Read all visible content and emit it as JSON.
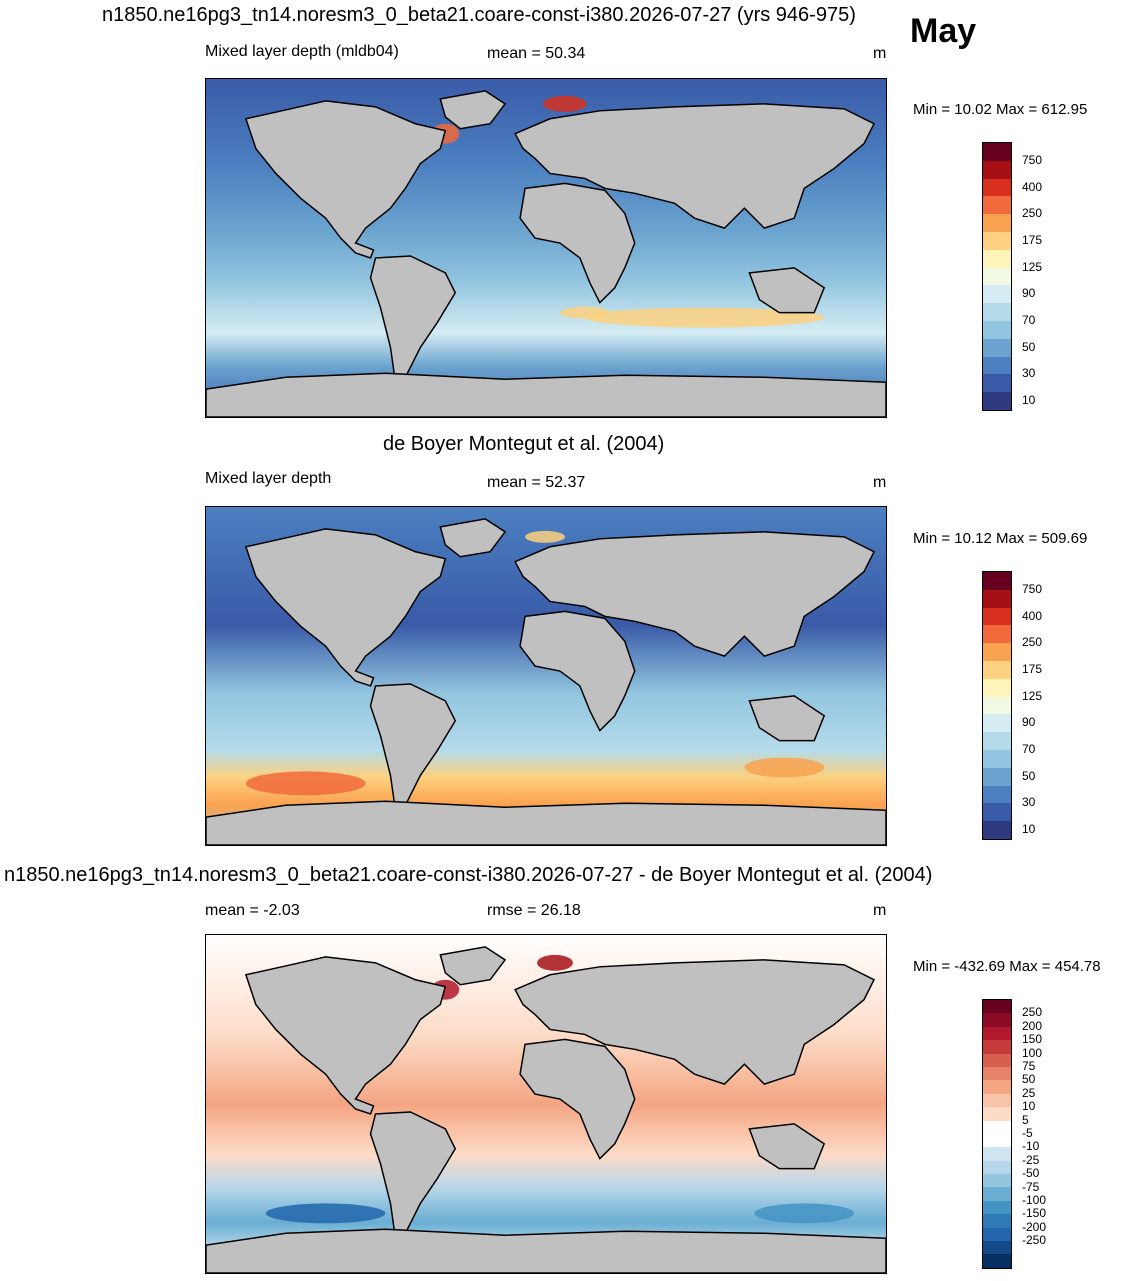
{
  "header": {
    "title": "n1850.ne16pg3_tn14.noresm3_0_beta21.coare-const-i380.2026-07-27 (yrs 946-975)",
    "month": "May"
  },
  "panels": [
    {
      "title": "",
      "left_label": "Mixed layer depth (mldb04)",
      "center_label": "mean =  50.34",
      "units": "m",
      "minmax": "Min =  10.02 Max = 612.95",
      "colorbar": {
        "labels": [
          "750",
          "400",
          "250",
          "175",
          "125",
          "90",
          "70",
          "50",
          "30",
          "10"
        ],
        "colors": [
          "#67001f",
          "#a50f15",
          "#d7301f",
          "#f16a3b",
          "#f9a24f",
          "#fdd17f",
          "#fef3b8",
          "#f2f9e2",
          "#d5ecf3",
          "#b5dbeb",
          "#92c5df",
          "#6ba4cf",
          "#4b7fc0",
          "#3a5ba8",
          "#2d3a7f"
        ]
      }
    },
    {
      "title": "de Boyer Montegut et al. (2004)",
      "left_label": "Mixed layer depth",
      "center_label": "mean =  52.37",
      "units": "m",
      "minmax": "Min =  10.12 Max = 509.69",
      "colorbar": {
        "labels": [
          "750",
          "400",
          "250",
          "175",
          "125",
          "90",
          "70",
          "50",
          "30",
          "10"
        ],
        "colors": [
          "#67001f",
          "#a50f15",
          "#d7301f",
          "#f16a3b",
          "#f9a24f",
          "#fdd17f",
          "#fef3b8",
          "#f2f9e2",
          "#d5ecf3",
          "#b5dbeb",
          "#92c5df",
          "#6ba4cf",
          "#4b7fc0",
          "#3a5ba8",
          "#2d3a7f"
        ]
      }
    },
    {
      "title": "n1850.ne16pg3_tn14.noresm3_0_beta21.coare-const-i380.2026-07-27 - de Boyer Montegut et al. (2004)",
      "left_label": "mean =  -2.03",
      "center_label": "rmse =  26.18",
      "units": "m",
      "minmax": "Min = -432.69 Max = 454.78",
      "colorbar": {
        "labels": [
          "250",
          "200",
          "150",
          "100",
          "75",
          "50",
          "25",
          "10",
          "5",
          "-5",
          "-10",
          "-25",
          "-50",
          "-75",
          "-100",
          "-150",
          "-200",
          "-250"
        ],
        "colors": [
          "#67001f",
          "#8b0a26",
          "#b2182b",
          "#c53b3a",
          "#d6604d",
          "#e58267",
          "#f4a582",
          "#f8c4a8",
          "#fddbc7",
          "#ffffff",
          "#ffffff",
          "#d1e5f0",
          "#b6d6e9",
          "#92c5de",
          "#6aaed3",
          "#4393c3",
          "#2f79b5",
          "#2166ac",
          "#114a86",
          "#053061"
        ]
      }
    }
  ],
  "colors": {
    "land": "#c0c0c0",
    "coast": "#000000"
  }
}
